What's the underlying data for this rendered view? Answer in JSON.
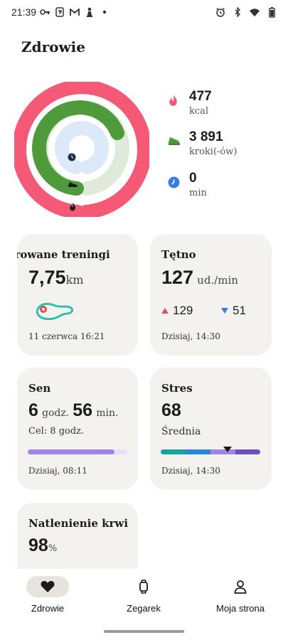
{
  "status_bar": {
    "time": "21:39"
  },
  "header": {
    "title": "Zdrowie"
  },
  "activity": {
    "calories": {
      "value": "477",
      "unit": "kcal",
      "color": "#f05a74"
    },
    "steps": {
      "value": "3 891",
      "unit": "kroki(-ów)",
      "color": "#4c9a3a"
    },
    "minutes": {
      "value": "0",
      "unit": "min",
      "color": "#3a7be0"
    },
    "ring_colors": {
      "outer": "#f45a76",
      "middle": "#4f9a3b",
      "middle_track": "#dfeadb",
      "inner_track": "#dce9f8"
    },
    "progress": {
      "calories": 0.95,
      "steps": 0.75,
      "minutes": 0.0
    }
  },
  "cards": {
    "workouts": {
      "title": "Zarejestrowane treningi",
      "distance": "7,75",
      "unit": "km",
      "date": "11 czerwca 16:21"
    },
    "heart_rate": {
      "title": "Tętno",
      "value": "127",
      "unit": "ud./min",
      "max": "129",
      "min": "51",
      "time": "Dzisiaj, 14:30"
    },
    "sleep": {
      "title": "Sen",
      "hours": "6",
      "hours_unit": "godz.",
      "minutes": "56",
      "minutes_unit": "min.",
      "goal": "Cel: 8 godz.",
      "time": "Dzisiaj, 08:11",
      "progress": 0.87
    },
    "stress": {
      "title": "Stres",
      "value": "68",
      "level": "Średnia",
      "time": "Dzisiaj, 14:30",
      "marker": 0.67
    },
    "spo2": {
      "title": "Natlenienie krwi",
      "value": "98",
      "unit": "%"
    }
  },
  "nav": {
    "health": "Zdrowie",
    "watch": "Zegarek",
    "profile": "Moja strona"
  }
}
